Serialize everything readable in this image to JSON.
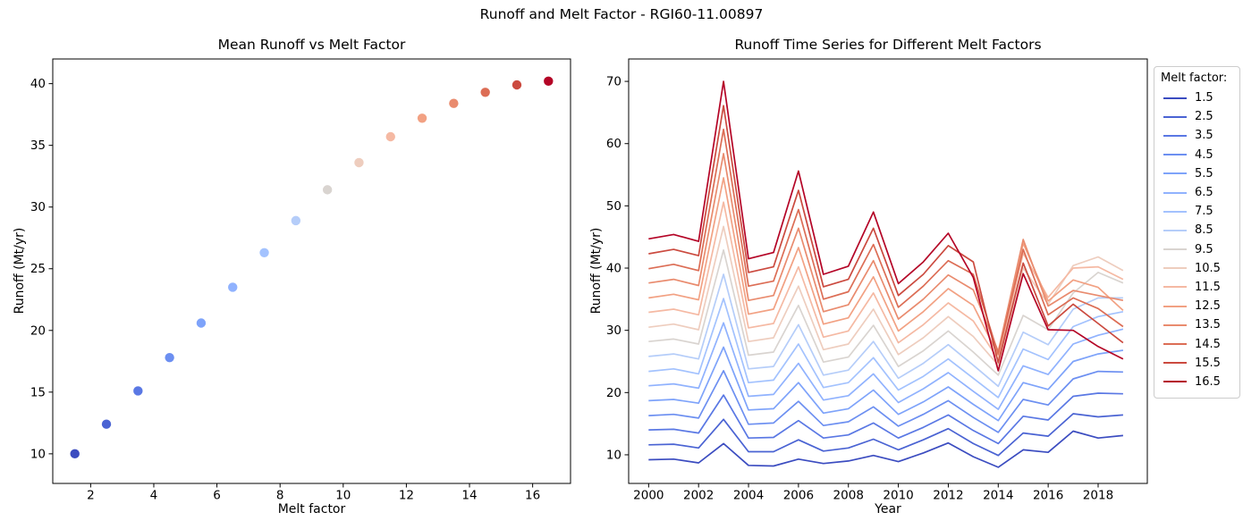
{
  "suptitle": "Runoff and Melt Factor - RGI60-11.00897",
  "legend": {
    "title": "Melt factor:",
    "entries": [
      {
        "label": "1.5",
        "color": "#3b4cc0"
      },
      {
        "label": "2.5",
        "color": "#4a63d3"
      },
      {
        "label": "3.5",
        "color": "#5a78e4"
      },
      {
        "label": "4.5",
        "color": "#6c8ff1"
      },
      {
        "label": "5.5",
        "color": "#7ea3fa"
      },
      {
        "label": "6.5",
        "color": "#90b2fe"
      },
      {
        "label": "7.5",
        "color": "#a3c2fe"
      },
      {
        "label": "8.5",
        "color": "#b5cdf9"
      },
      {
        "label": "9.5",
        "color": "#d9d4d0"
      },
      {
        "label": "10.5",
        "color": "#eecdbe"
      },
      {
        "label": "11.5",
        "color": "#f5b9a3"
      },
      {
        "label": "12.5",
        "color": "#f2a183"
      },
      {
        "label": "13.5",
        "color": "#e98b6e"
      },
      {
        "label": "14.5",
        "color": "#dc6d55"
      },
      {
        "label": "15.5",
        "color": "#cb4a3f"
      },
      {
        "label": "16.5",
        "color": "#b40426"
      }
    ]
  },
  "chart_data": [
    {
      "type": "scatter",
      "title": "Mean Runoff vs Melt Factor",
      "xlabel": "Melt factor",
      "ylabel": "Runoff (Mt/yr)",
      "xlim": [
        0.8,
        17.2
      ],
      "ylim": [
        7.6,
        42.0
      ],
      "xticks": [
        2,
        4,
        6,
        8,
        10,
        12,
        14,
        16
      ],
      "yticks": [
        10,
        15,
        20,
        25,
        30,
        35,
        40
      ],
      "x": [
        1.5,
        2.5,
        3.5,
        4.5,
        5.5,
        6.5,
        7.5,
        8.5,
        9.5,
        10.5,
        11.5,
        12.5,
        13.5,
        14.5,
        15.5,
        16.5
      ],
      "y": [
        10.0,
        12.4,
        15.1,
        17.8,
        20.6,
        23.5,
        26.3,
        28.9,
        31.4,
        33.6,
        35.7,
        37.2,
        38.4,
        39.3,
        39.9,
        40.2
      ],
      "colors": [
        "#3b4cc0",
        "#4a63d3",
        "#5a78e4",
        "#6c8ff1",
        "#7ea3fa",
        "#90b2fe",
        "#a3c2fe",
        "#b5cdf9",
        "#d9d4d0",
        "#eecdbe",
        "#f5b9a3",
        "#f2a183",
        "#e98b6e",
        "#dc6d55",
        "#cb4a3f",
        "#b40426"
      ],
      "grid": false,
      "legend_position": "none"
    },
    {
      "type": "line",
      "title": "Runoff Time Series for Different Melt Factors",
      "xlabel": "Year",
      "ylabel": "Runoff (Mt/yr)",
      "xlim": [
        1999.2,
        2019.97
      ],
      "ylim": [
        5.4,
        73.6
      ],
      "xticks": [
        2000,
        2002,
        2004,
        2006,
        2008,
        2010,
        2012,
        2014,
        2016,
        2018
      ],
      "yticks": [
        10,
        20,
        30,
        40,
        50,
        60,
        70
      ],
      "x": [
        2000,
        2001,
        2002,
        2003,
        2004,
        2005,
        2006,
        2007,
        2008,
        2009,
        2010,
        2011,
        2012,
        2013,
        2014,
        2015,
        2016,
        2017,
        2018,
        2019
      ],
      "grid": false,
      "legend_position": "outside-right",
      "series": [
        {
          "name": "1.5",
          "color": "#3b4cc0",
          "values": [
            9.2,
            9.3,
            8.7,
            11.8,
            8.3,
            8.2,
            9.3,
            8.6,
            9.0,
            9.9,
            8.9,
            10.3,
            11.9,
            9.7,
            8.0,
            10.8,
            10.4,
            13.8,
            12.7,
            13.1
          ]
        },
        {
          "name": "2.5",
          "color": "#4a63d3",
          "values": [
            11.6,
            11.7,
            11.1,
            15.7,
            10.5,
            10.5,
            12.4,
            10.6,
            11.1,
            12.5,
            10.8,
            12.4,
            14.2,
            11.8,
            9.9,
            13.5,
            13.0,
            16.6,
            16.1,
            16.4
          ]
        },
        {
          "name": "3.5",
          "color": "#5a78e4",
          "values": [
            14.0,
            14.1,
            13.5,
            19.6,
            12.7,
            12.8,
            15.5,
            12.7,
            13.2,
            15.1,
            12.7,
            14.4,
            16.4,
            13.9,
            11.8,
            16.2,
            15.6,
            19.4,
            19.9,
            19.8
          ]
        },
        {
          "name": "4.5",
          "color": "#6c8ff1",
          "values": [
            16.3,
            16.5,
            15.9,
            23.5,
            14.9,
            15.1,
            18.6,
            14.7,
            15.3,
            17.7,
            14.6,
            16.5,
            18.7,
            16.0,
            13.6,
            18.9,
            18.0,
            22.2,
            23.4,
            23.3
          ]
        },
        {
          "name": "5.5",
          "color": "#7ea3fa",
          "values": [
            18.7,
            18.9,
            18.3,
            27.3,
            17.2,
            17.4,
            21.6,
            16.7,
            17.4,
            20.4,
            16.5,
            18.5,
            20.9,
            18.1,
            15.5,
            21.6,
            20.5,
            25.0,
            26.2,
            26.8
          ]
        },
        {
          "name": "6.5",
          "color": "#90b2fe",
          "values": [
            21.1,
            21.4,
            20.7,
            31.2,
            19.4,
            19.7,
            24.7,
            18.8,
            19.5,
            23.0,
            18.4,
            20.6,
            23.2,
            20.2,
            17.3,
            24.3,
            22.9,
            27.8,
            29.2,
            30.2
          ]
        },
        {
          "name": "7.5",
          "color": "#a3c2fe",
          "values": [
            23.4,
            23.8,
            23.0,
            35.1,
            21.6,
            22.0,
            27.8,
            20.8,
            21.6,
            25.6,
            20.4,
            22.6,
            25.4,
            22.3,
            19.2,
            27.0,
            25.3,
            30.6,
            32.2,
            33.0
          ]
        },
        {
          "name": "8.5",
          "color": "#b5cdf9",
          "values": [
            25.8,
            26.2,
            25.4,
            39.0,
            23.8,
            24.2,
            30.9,
            22.8,
            23.6,
            28.2,
            22.3,
            24.7,
            27.7,
            24.4,
            21.0,
            29.7,
            27.7,
            33.4,
            35.2,
            35.2
          ]
        },
        {
          "name": "9.5",
          "color": "#d9d4d0",
          "values": [
            28.2,
            28.6,
            27.8,
            42.9,
            26.0,
            26.5,
            34.0,
            24.9,
            25.7,
            30.8,
            24.2,
            26.7,
            29.9,
            26.5,
            22.8,
            32.4,
            30.1,
            36.0,
            39.3,
            37.6
          ]
        },
        {
          "name": "10.5",
          "color": "#eecdbe",
          "values": [
            30.5,
            31.0,
            30.1,
            46.7,
            28.2,
            28.8,
            37.1,
            26.9,
            27.8,
            33.4,
            26.1,
            28.8,
            32.2,
            29.0,
            24.4,
            40.0,
            34.2,
            40.4,
            41.8,
            39.6
          ]
        },
        {
          "name": "11.5",
          "color": "#f5b9a3",
          "values": [
            32.9,
            33.4,
            32.5,
            50.6,
            30.4,
            31.1,
            40.2,
            28.9,
            29.9,
            36.0,
            28.0,
            30.9,
            34.4,
            31.5,
            25.3,
            42.4,
            35.3,
            40.0,
            40.2,
            38.2
          ]
        },
        {
          "name": "12.5",
          "color": "#f2a183",
          "values": [
            35.2,
            35.8,
            34.9,
            54.5,
            32.6,
            33.4,
            43.3,
            31.0,
            32.0,
            38.6,
            29.9,
            33.0,
            36.7,
            34.0,
            26.0,
            44.0,
            34.7,
            38.1,
            36.9,
            33.2
          ]
        },
        {
          "name": "13.5",
          "color": "#e98b6e",
          "values": [
            37.6,
            38.2,
            37.2,
            58.4,
            34.8,
            35.6,
            46.4,
            33.0,
            34.1,
            41.2,
            31.8,
            35.0,
            38.9,
            36.5,
            26.6,
            44.6,
            33.9,
            36.4,
            35.6,
            34.8
          ]
        },
        {
          "name": "14.5",
          "color": "#dc6d55",
          "values": [
            39.9,
            40.6,
            39.6,
            62.3,
            37.1,
            37.9,
            49.4,
            35.0,
            36.2,
            43.8,
            33.7,
            37.1,
            41.2,
            39.0,
            26.2,
            43.0,
            32.5,
            35.2,
            33.5,
            30.6
          ]
        },
        {
          "name": "15.5",
          "color": "#cb4a3f",
          "values": [
            42.3,
            43.0,
            42.0,
            66.1,
            39.3,
            40.2,
            52.5,
            37.0,
            38.2,
            46.4,
            35.6,
            39.0,
            43.6,
            41.0,
            24.8,
            40.8,
            30.7,
            34.2,
            31.1,
            28.0
          ]
        },
        {
          "name": "16.5",
          "color": "#b40426",
          "values": [
            44.7,
            45.4,
            44.3,
            70.0,
            41.5,
            42.5,
            55.6,
            39.0,
            40.3,
            49.0,
            37.5,
            41.0,
            45.6,
            38.5,
            23.5,
            39.1,
            30.1,
            30.0,
            27.4,
            25.4
          ]
        }
      ]
    }
  ]
}
